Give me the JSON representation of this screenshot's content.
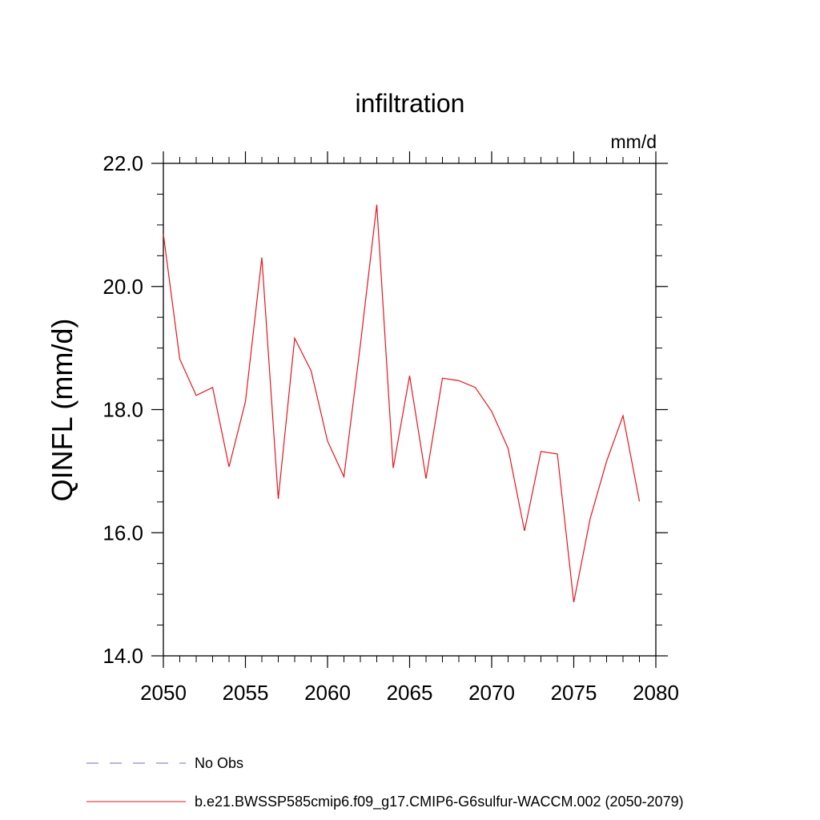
{
  "chart_data": {
    "type": "line",
    "title": "infiltration",
    "units": "mm/d",
    "ylabel": "QINFL  (mm/d)",
    "xlabel": "",
    "xlim": [
      2050,
      2080
    ],
    "ylim": [
      14.0,
      22.0
    ],
    "x_ticks": [
      2050,
      2055,
      2060,
      2065,
      2070,
      2075,
      2080
    ],
    "x_tick_labels": [
      "2050",
      "2055",
      "2060",
      "2065",
      "2070",
      "2075",
      "2080"
    ],
    "y_ticks": [
      14.0,
      16.0,
      18.0,
      20.0,
      22.0
    ],
    "y_tick_labels": [
      "14.0",
      "16.0",
      "18.0",
      "20.0",
      "22.0"
    ],
    "x_minor_step": 1,
    "y_minor_step": 0.5,
    "grid": false,
    "legend_position": "bottom-left",
    "series": [
      {
        "name": "No Obs",
        "color": "#7b68ae",
        "style": "dashed",
        "x": [],
        "y": []
      },
      {
        "name": "b.e21.BWSSP585cmip6.f09_g17.CMIP6-G6sulfur-WACCM.002 (2050-2079)",
        "color": "#e8141e",
        "style": "solid",
        "x": [
          2050,
          2051,
          2052,
          2053,
          2054,
          2055,
          2056,
          2057,
          2058,
          2059,
          2060,
          2061,
          2062,
          2063,
          2064,
          2065,
          2066,
          2067,
          2068,
          2069,
          2070,
          2071,
          2072,
          2073,
          2074,
          2075,
          2076,
          2077,
          2078,
          2079
        ],
        "y": [
          20.85,
          18.82,
          18.23,
          18.36,
          17.07,
          18.13,
          20.47,
          16.55,
          19.16,
          18.63,
          17.49,
          16.91,
          19.05,
          21.33,
          17.05,
          18.55,
          16.88,
          18.51,
          18.47,
          18.36,
          17.97,
          17.37,
          16.03,
          17.32,
          17.28,
          14.87,
          16.23,
          17.16,
          17.9,
          16.51
        ]
      }
    ]
  }
}
